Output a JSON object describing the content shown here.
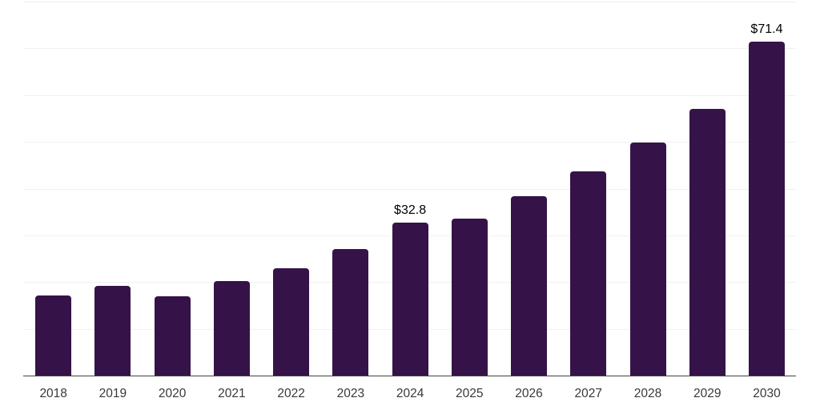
{
  "chart_data": {
    "type": "bar",
    "title": "",
    "xlabel": "",
    "ylabel": "",
    "categories": [
      "2018",
      "2019",
      "2020",
      "2021",
      "2022",
      "2023",
      "2024",
      "2025",
      "2026",
      "2027",
      "2028",
      "2029",
      "2030"
    ],
    "values": [
      17.2,
      19.2,
      16.9,
      20.2,
      22.9,
      27.0,
      32.8,
      33.6,
      38.3,
      43.7,
      49.9,
      57.1,
      71.4
    ],
    "data_labels": [
      {
        "index": 6,
        "text": "$32.8"
      },
      {
        "index": 12,
        "text": "$71.4"
      }
    ],
    "ylim": [
      0,
      80
    ],
    "gridline_step": 10,
    "grid": "horizontal",
    "legend": "none",
    "colors": {
      "bar": "#351349",
      "gridline": "#f0f0f0",
      "axis_line": "#424242",
      "tick_label": "#383838",
      "data_label": "#000000",
      "background": "#ffffff"
    }
  }
}
